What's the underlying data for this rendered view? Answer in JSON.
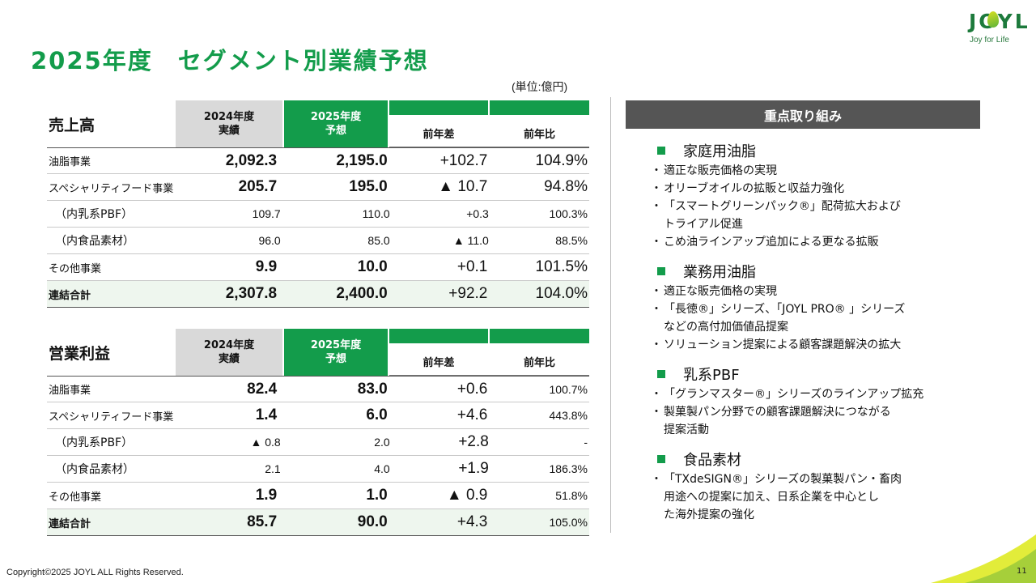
{
  "title": "2025年度　セグメント別業績予想",
  "logo": {
    "name": "JOYL",
    "tagline": "Joy for Life"
  },
  "unit": "(単位:億円)",
  "sales": {
    "label": "売上高",
    "col_2024": [
      "2024年度",
      "実績"
    ],
    "col_2025": [
      "2025年度",
      "予想"
    ],
    "col_diff": "前年差",
    "col_ratio": "前年比",
    "rows": [
      {
        "label": "油脂事業",
        "v2024": "2,092.3",
        "v2025": "2,195.0",
        "diff": "+102.7",
        "ratio": "104.9%"
      },
      {
        "label": "スペシャリティフード事業",
        "v2024": "205.7",
        "v2025": "195.0",
        "diff": "▲ 10.7",
        "ratio": "94.8%"
      },
      {
        "label": "（内乳系PBF）",
        "v2024": "109.7",
        "v2025": "110.0",
        "diff": "+0.3",
        "ratio": "100.3%"
      },
      {
        "label": "（内食品素材）",
        "v2024": "96.0",
        "v2025": "85.0",
        "diff": "▲ 11.0",
        "ratio": "88.5%"
      },
      {
        "label": "その他事業",
        "v2024": "9.9",
        "v2025": "10.0",
        "diff": "+0.1",
        "ratio": "101.5%"
      },
      {
        "label": "連結合計",
        "v2024": "2,307.8",
        "v2025": "2,400.0",
        "diff": "+92.2",
        "ratio": "104.0%"
      }
    ]
  },
  "op": {
    "label": "営業利益",
    "col_2024": [
      "2024年度",
      "実績"
    ],
    "col_2025": [
      "2025年度",
      "予想"
    ],
    "col_diff": "前年差",
    "col_ratio": "前年比",
    "rows": [
      {
        "label": "油脂事業",
        "v2024": "82.4",
        "v2025": "83.0",
        "diff": "+0.6",
        "ratio": "100.7%"
      },
      {
        "label": "スペシャリティフード事業",
        "v2024": "1.4",
        "v2025": "6.0",
        "diff": "+4.6",
        "ratio": "443.8%"
      },
      {
        "label": "（内乳系PBF）",
        "v2024": "▲ 0.8",
        "v2025": "2.0",
        "diff": "+2.8",
        "ratio": "-"
      },
      {
        "label": "（内食品素材）",
        "v2024": "2.1",
        "v2025": "4.0",
        "diff": "+1.9",
        "ratio": "186.3%"
      },
      {
        "label": "その他事業",
        "v2024": "1.9",
        "v2025": "1.0",
        "diff": "▲ 0.9",
        "ratio": "51.8%"
      },
      {
        "label": "連結合計",
        "v2024": "85.7",
        "v2025": "90.0",
        "diff": "+4.3",
        "ratio": "105.0%"
      }
    ]
  },
  "focus": {
    "heading": "重点取り組み",
    "sections": [
      {
        "title": "家庭用油脂",
        "bullets": [
          [
            "適正な販売価格の実現"
          ],
          [
            "オリーブオイルの拡販と収益力強化"
          ],
          [
            "「スマートグリーンパック®」配荷拡大および",
            "トライアル促進"
          ],
          [
            "こめ油ラインアップ追加による更なる拡販"
          ]
        ]
      },
      {
        "title": "業務用油脂",
        "bullets": [
          [
            "適正な販売価格の実現"
          ],
          [
            "「長徳®」シリーズ、「JOYL PRO® 」シリーズ",
            "などの高付加価値品提案"
          ],
          [
            "ソリューション提案による顧客課題解決の拡大"
          ]
        ]
      },
      {
        "title": "乳系PBF",
        "bullets": [
          [
            "「グランマスター®」シリーズのラインアップ拡充"
          ],
          [
            "製菓製パン分野での顧客課題解決につながる",
            "提案活動"
          ]
        ]
      },
      {
        "title": "食品素材",
        "bullets": [
          [
            "「TXdeSIGN®」シリーズの製菓製パン・畜肉",
            "用途への提案に加え、日系企業を中心とし",
            "た海外提案の強化"
          ]
        ]
      }
    ]
  },
  "footer": {
    "copyright": "Copyright©2025 JOYL ALL Rights Reserved.",
    "page": "11"
  },
  "colors": {
    "brand_green": "#139c4b",
    "header_gray": "#d9d9d9",
    "focus_head": "#555555",
    "total_row": "#eef6ee"
  }
}
